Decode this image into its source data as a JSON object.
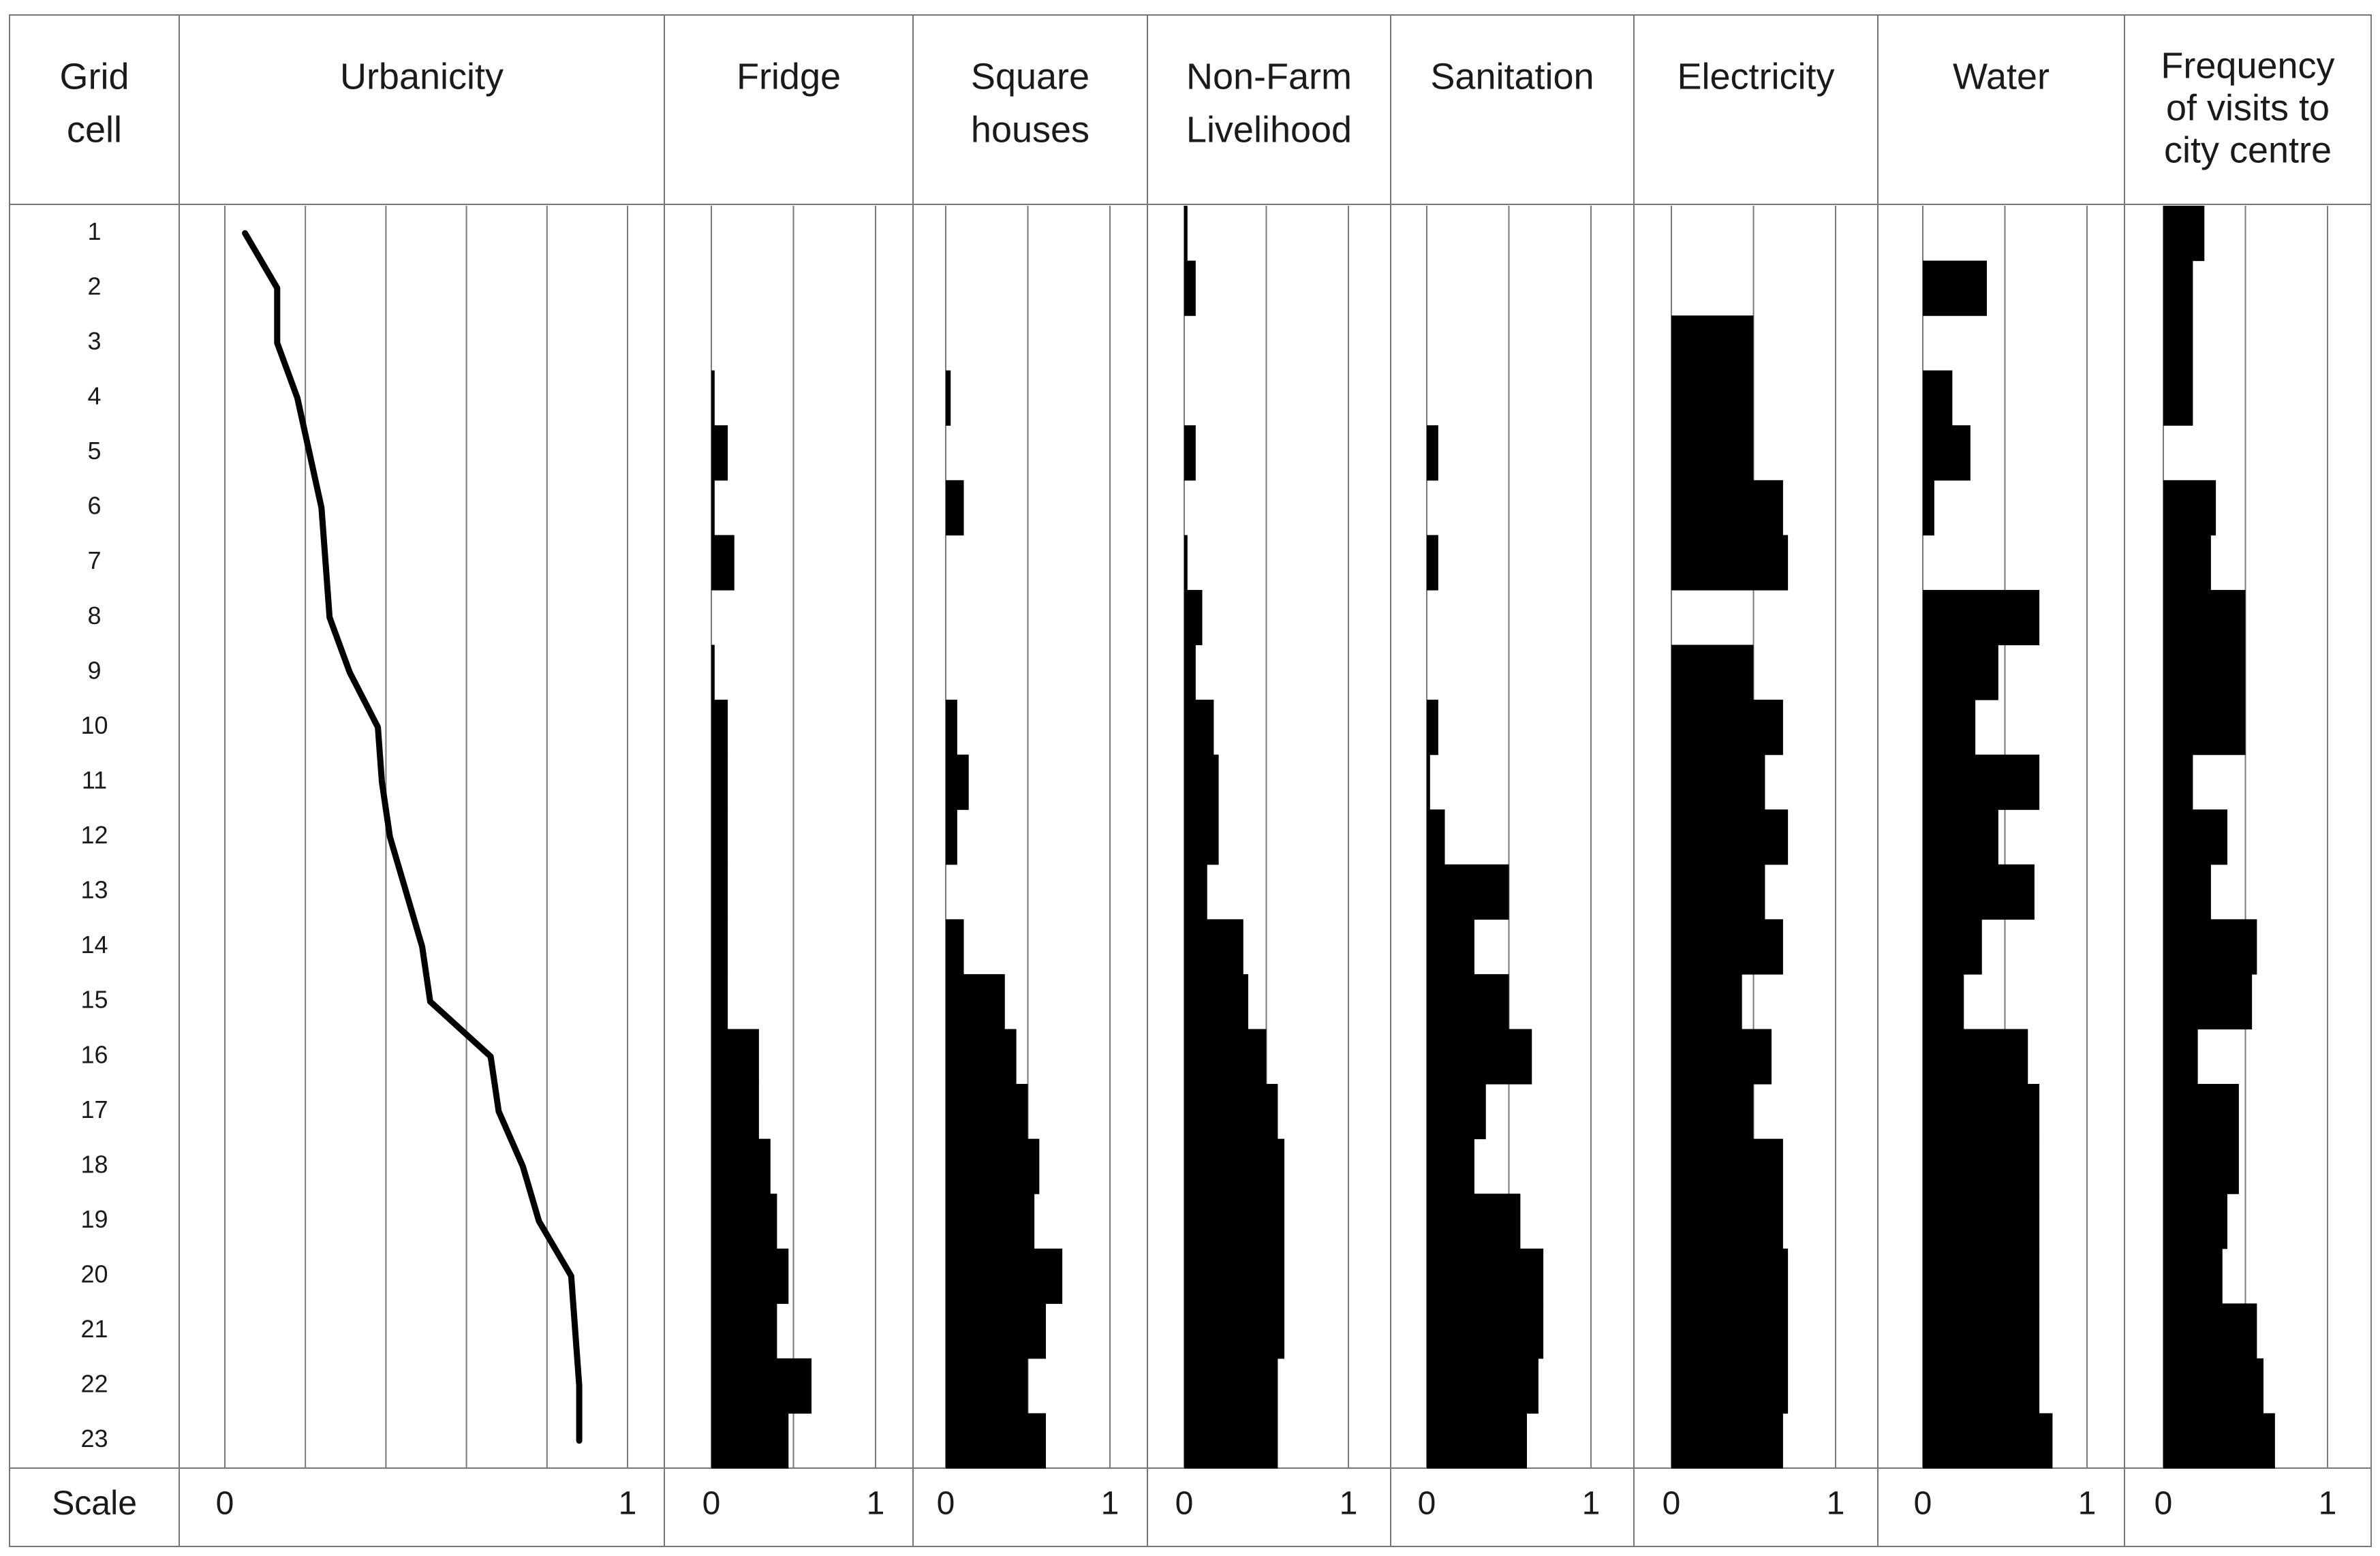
{
  "chart_data": {
    "type": "bar",
    "title": "",
    "row_header": [
      "Grid",
      "cell"
    ],
    "scale_label": "Scale",
    "scale_min_label": "0",
    "scale_max_label": "1",
    "xlim": [
      0,
      1
    ],
    "grid_cells": [
      "1",
      "2",
      "3",
      "4",
      "5",
      "6",
      "7",
      "8",
      "9",
      "10",
      "11",
      "12",
      "13",
      "14",
      "15",
      "16",
      "17",
      "18",
      "19",
      "20",
      "21",
      "22",
      "23"
    ],
    "urbanicity": {
      "name": "Urbanicity",
      "header_lines": [
        "Urbanicity"
      ],
      "type": "line",
      "values": [
        0.05,
        0.13,
        0.13,
        0.18,
        0.21,
        0.24,
        0.25,
        0.26,
        0.31,
        0.38,
        0.39,
        0.41,
        0.45,
        0.49,
        0.51,
        0.66,
        0.68,
        0.74,
        0.78,
        0.86,
        0.87,
        0.88,
        0.88
      ]
    },
    "series": [
      {
        "name": "Fridge",
        "header_lines": [
          "Fridge"
        ],
        "values": [
          0,
          0,
          0,
          0.02,
          0.1,
          0.02,
          0.14,
          0,
          0.02,
          0.1,
          0.1,
          0.1,
          0.1,
          0.1,
          0.1,
          0.29,
          0.29,
          0.36,
          0.4,
          0.47,
          0.4,
          0.61,
          0.47
        ]
      },
      {
        "name": "Square houses",
        "header_lines": [
          "Square",
          "houses"
        ],
        "values": [
          0,
          0,
          0,
          0.03,
          0,
          0.11,
          0,
          0,
          0,
          0.07,
          0.14,
          0.07,
          0,
          0.11,
          0.36,
          0.43,
          0.5,
          0.57,
          0.54,
          0.71,
          0.61,
          0.5,
          0.61
        ]
      },
      {
        "name": "Non-Farm Livelihood",
        "header_lines": [
          "Non-Farm",
          "Livelihood"
        ],
        "values": [
          0.02,
          0.07,
          0,
          0,
          0.07,
          0,
          0.02,
          0.11,
          0.07,
          0.18,
          0.21,
          0.21,
          0.14,
          0.36,
          0.39,
          0.5,
          0.57,
          0.61,
          0.61,
          0.61,
          0.61,
          0.57,
          0.57
        ]
      },
      {
        "name": "Sanitation",
        "header_lines": [
          "Sanitation"
        ],
        "values": [
          0,
          0,
          0,
          0,
          0.07,
          0,
          0.07,
          0,
          0,
          0.07,
          0.02,
          0.11,
          0.5,
          0.29,
          0.5,
          0.64,
          0.36,
          0.29,
          0.57,
          0.71,
          0.71,
          0.68,
          0.61
        ]
      },
      {
        "name": "Electricity",
        "header_lines": [
          "Electricity"
        ],
        "values": [
          0,
          0,
          0.5,
          0.5,
          0.5,
          0.68,
          0.71,
          0,
          0.5,
          0.68,
          0.57,
          0.71,
          0.57,
          0.68,
          0.43,
          0.61,
          0.5,
          0.68,
          0.68,
          0.71,
          0.71,
          0.71,
          0.68
        ]
      },
      {
        "name": "Water",
        "header_lines": [
          "Water"
        ],
        "values": [
          0,
          0.39,
          0,
          0.18,
          0.29,
          0.07,
          0,
          0.71,
          0.46,
          0.32,
          0.71,
          0.46,
          0.68,
          0.36,
          0.25,
          0.64,
          0.71,
          0.71,
          0.71,
          0.71,
          0.71,
          0.71,
          0.79
        ]
      },
      {
        "name": "Frequency of visits to city centre",
        "header_lines": [
          "Frequency",
          "of visits to",
          "city centre"
        ],
        "values": [
          0.25,
          0.18,
          0.18,
          0.18,
          0,
          0.32,
          0.29,
          0.5,
          0.5,
          0.5,
          0.18,
          0.39,
          0.29,
          0.57,
          0.54,
          0.21,
          0.46,
          0.46,
          0.39,
          0.36,
          0.57,
          0.61,
          0.68
        ]
      }
    ],
    "grid": true,
    "legend": "none"
  }
}
